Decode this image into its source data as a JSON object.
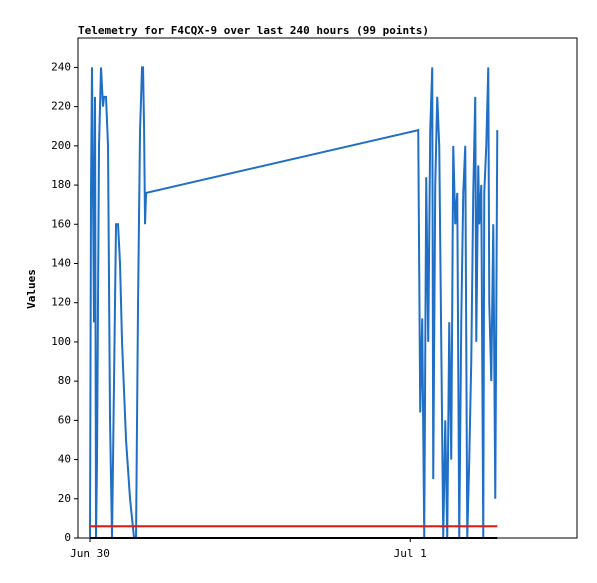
{
  "chart_data": {
    "type": "line",
    "title": "Telemetry for F4CQX-9 over last 240 hours (99 points)",
    "y_label": "Values",
    "xlim": [
      -0.9,
      36.5
    ],
    "xticks": [
      {
        "value": 0,
        "label": "Jun 30"
      },
      {
        "value": 24,
        "label": "Jul 1"
      }
    ],
    "ylim": [
      0,
      255
    ],
    "yticks": [
      0,
      20,
      40,
      60,
      80,
      100,
      120,
      140,
      160,
      180,
      200,
      220,
      240
    ],
    "series": [
      {
        "color": "#1f6fc6",
        "x": [
          0,
          0.075,
          0.15,
          0.3,
          0.375,
          0.45,
          0.525,
          0.675,
          0.825,
          0.975,
          1.05,
          1.2,
          1.35,
          1.5,
          1.65,
          1.8,
          1.95,
          2.1,
          2.25,
          2.4,
          2.7,
          3,
          3.3,
          3.45,
          3.6,
          3.75,
          3.9,
          3.975,
          4.05,
          4.125,
          4.2,
          24.6,
          24.75,
          24.9,
          25.05,
          25.2,
          25.35,
          25.5,
          25.65,
          25.725,
          25.875,
          26.025,
          26.175,
          26.325,
          26.475,
          26.625,
          26.775,
          26.925,
          27.075,
          27.225,
          27.375,
          27.525,
          27.675,
          27.825,
          27.975,
          28.125,
          28.275,
          28.425,
          28.575,
          28.725,
          28.875,
          28.95,
          29.1,
          29.175,
          29.325,
          29.475,
          29.55,
          29.7,
          29.85,
          29.925,
          30.075,
          30.225,
          30.375,
          30.525
        ],
        "values": [
          0,
          177,
          240,
          110,
          225,
          0,
          40,
          200,
          240,
          220,
          225,
          225,
          200,
          60,
          0,
          80,
          160,
          160,
          140,
          100,
          50,
          20,
          0,
          0,
          120,
          208,
          240,
          240,
          210,
          160,
          176,
          208,
          64,
          112,
          0,
          184,
          100,
          208,
          240,
          30,
          180,
          225,
          200,
          100,
          0,
          60,
          0,
          110,
          40,
          200,
          160,
          176,
          0,
          110,
          176,
          200,
          0,
          40,
          90,
          176,
          225,
          100,
          190,
          160,
          180,
          0,
          176,
          200,
          240,
          120,
          80,
          160,
          20,
          208
        ]
      },
      {
        "color": "#e8160c",
        "x": [
          0,
          30.525
        ],
        "values": [
          6,
          6
        ]
      },
      {
        "color": "#000000",
        "x": [
          0,
          30.525
        ],
        "values": [
          0,
          0
        ]
      }
    ]
  }
}
